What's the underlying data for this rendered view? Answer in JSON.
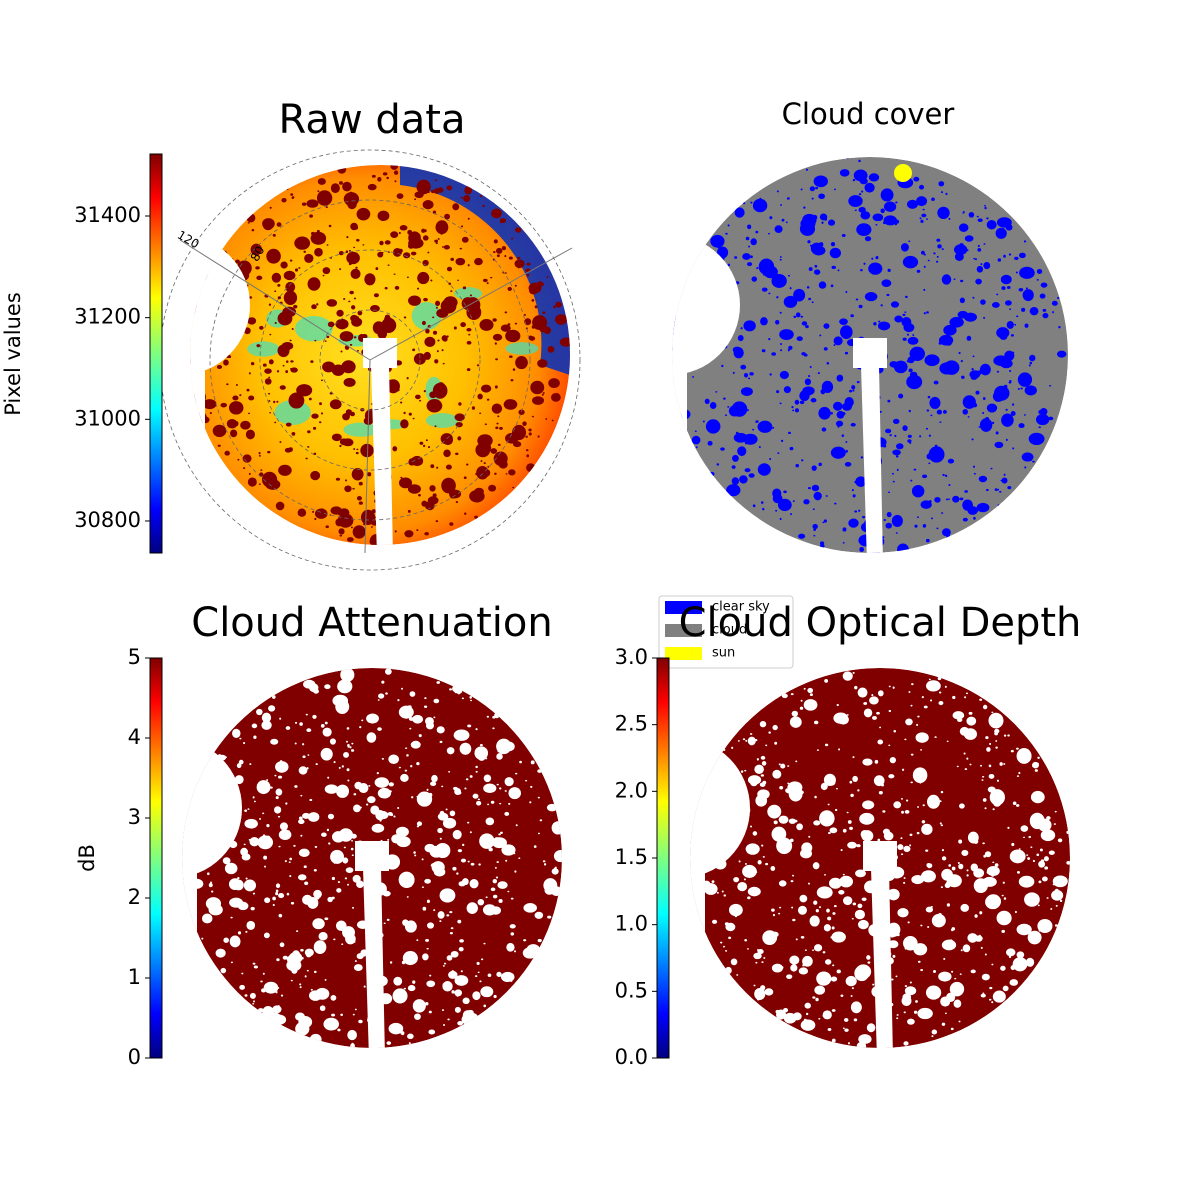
{
  "chart_data": [
    {
      "type": "image",
      "title": "Raw data",
      "colormap": "jet",
      "colorbar": {
        "label": "Pixel values",
        "ylim": [
          30737,
          31522
        ],
        "yticks": [
          30800,
          31000,
          31200,
          31400
        ]
      },
      "annotations": [
        "120",
        "80"
      ]
    },
    {
      "type": "image",
      "title": "Cloud cover",
      "series": [
        {
          "name": "clear sky",
          "color": "#0000ff"
        },
        {
          "name": "cloud",
          "color": "#808080"
        },
        {
          "name": "sun",
          "color": "#ffff00"
        }
      ]
    },
    {
      "type": "image",
      "title": "Cloud Attenuation",
      "colormap": "jet",
      "colorbar": {
        "label": "dB",
        "ylim": [
          0,
          5
        ],
        "yticks": [
          0,
          1,
          2,
          3,
          4,
          5
        ]
      }
    },
    {
      "type": "image",
      "title": "Cloud Optical Depth",
      "colormap": "jet",
      "colorbar": {
        "ylim": [
          0,
          3
        ],
        "yticks": [
          {
            "value": 0,
            "label": "0.0"
          },
          0.5,
          {
            "value": 1,
            "label": "1.0"
          },
          1.5,
          {
            "value": 2,
            "label": "2.0"
          },
          2.5,
          {
            "value": 3,
            "label": "3.0"
          }
        ]
      }
    }
  ]
}
